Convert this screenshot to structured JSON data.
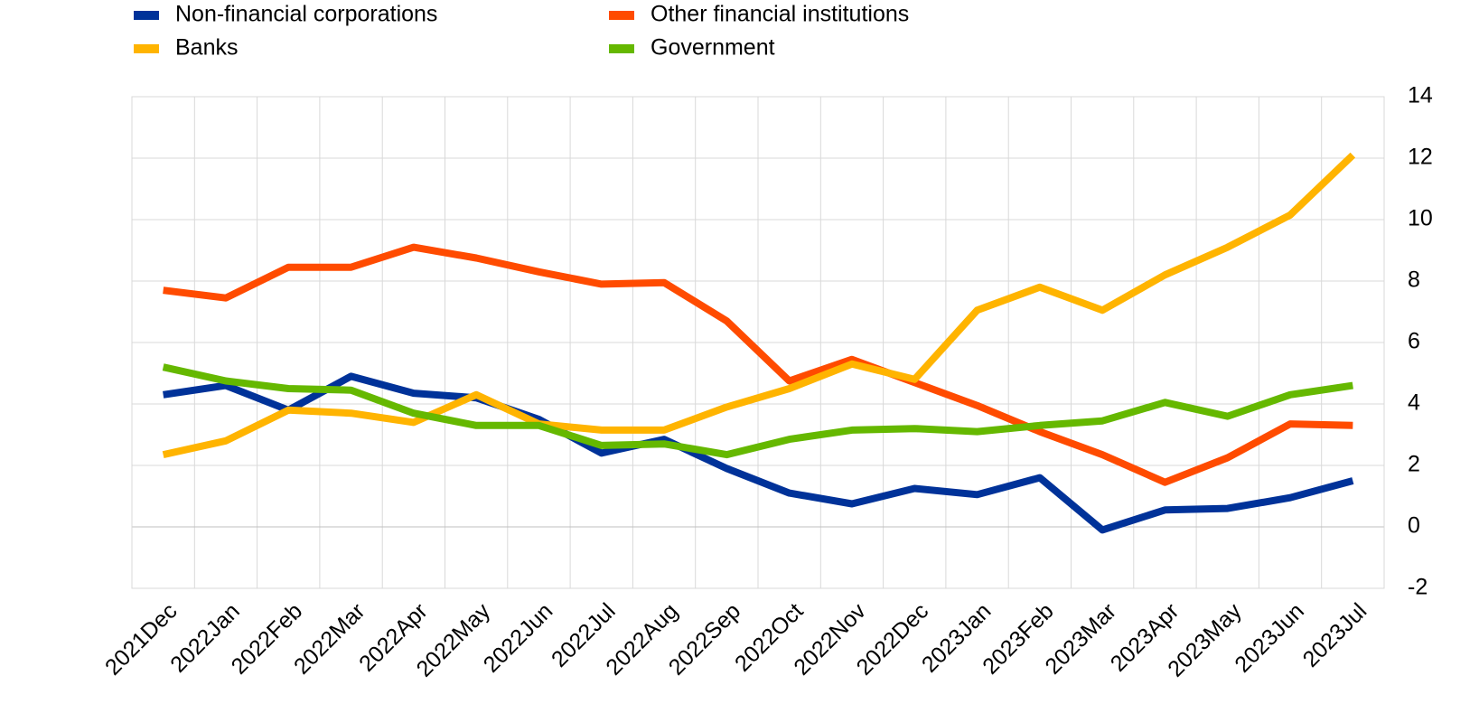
{
  "chart_data": {
    "type": "line",
    "categories": [
      "2021Dec",
      "2022Jan",
      "2022Feb",
      "2022Mar",
      "2022Apr",
      "2022May",
      "2022Jun",
      "2022Jul",
      "2022Aug",
      "2022Sep",
      "2022Oct",
      "2022Nov",
      "2022Dec",
      "2023Jan",
      "2023Feb",
      "2023Mar",
      "2023Apr",
      "2023May",
      "2023Jun",
      "2023Jul"
    ],
    "series": [
      {
        "name": "Non-financial corporations",
        "color": "#003299",
        "values": [
          4.3,
          4.6,
          3.8,
          4.9,
          4.35,
          4.2,
          3.5,
          2.4,
          2.85,
          1.9,
          1.1,
          0.75,
          1.25,
          1.05,
          1.6,
          -0.1,
          0.55,
          0.6,
          0.95,
          1.5
        ]
      },
      {
        "name": "Other financial institutions",
        "color": "#ff4b00",
        "values": [
          7.7,
          7.45,
          8.45,
          8.45,
          9.1,
          8.75,
          8.3,
          7.9,
          7.95,
          6.7,
          4.75,
          5.45,
          4.7,
          3.95,
          3.1,
          2.35,
          1.45,
          2.25,
          3.35,
          3.3
        ]
      },
      {
        "name": "Banks",
        "color": "#ffb400",
        "values": [
          2.35,
          2.8,
          3.8,
          3.7,
          3.4,
          4.3,
          3.35,
          3.15,
          3.15,
          3.9,
          4.5,
          5.3,
          4.8,
          7.05,
          7.8,
          7.05,
          8.2,
          9.1,
          10.15,
          12.1
        ]
      },
      {
        "name": "Government",
        "color": "#65b800",
        "values": [
          5.2,
          4.75,
          4.5,
          4.45,
          3.7,
          3.3,
          3.3,
          2.65,
          2.7,
          2.35,
          2.85,
          3.15,
          3.2,
          3.1,
          3.3,
          3.45,
          4.05,
          3.6,
          4.3,
          4.6
        ]
      }
    ],
    "ylim": [
      -2,
      14
    ],
    "yticks": [
      -2,
      0,
      2,
      4,
      6,
      8,
      10,
      12,
      14
    ],
    "grid": true
  }
}
